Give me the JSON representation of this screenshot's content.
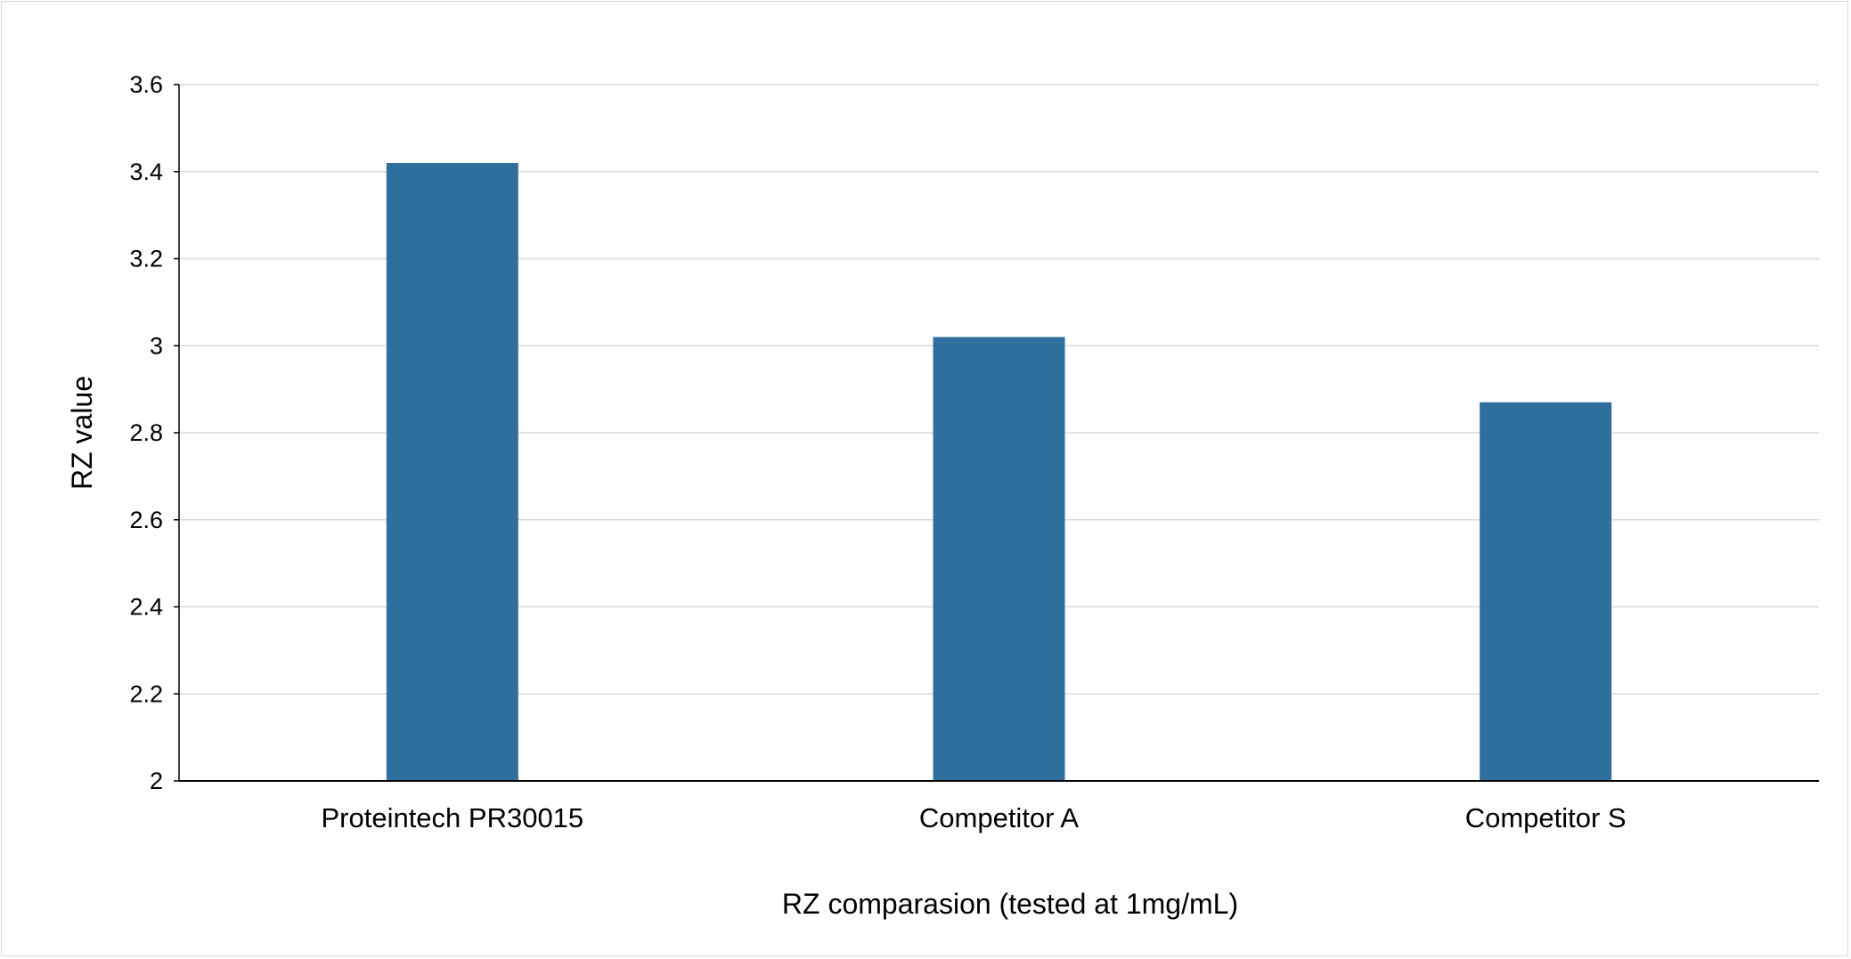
{
  "chart_data": {
    "type": "bar",
    "title": "",
    "xlabel": "RZ comparasion (tested at 1mg/mL)",
    "ylabel": "RZ value",
    "categories": [
      "Proteintech PR30015",
      "Competitor A",
      "Competitor S"
    ],
    "values": [
      3.42,
      3.02,
      2.87
    ],
    "ylim": [
      2,
      3.6
    ],
    "yticks": [
      "2",
      "2.2",
      "2.4",
      "2.6",
      "2.8",
      "3",
      "3.2",
      "3.4",
      "3.6"
    ],
    "bar_color": "#2e6f9e",
    "grid": true,
    "legend": "none"
  }
}
